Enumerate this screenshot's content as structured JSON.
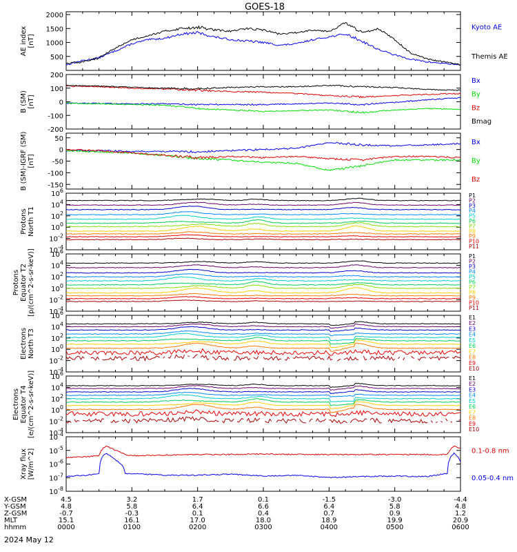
{
  "title": "GOES-18",
  "date_label": "2024 May 12",
  "colors": {
    "axis": "#000000",
    "black": "#000000",
    "blue": "#0000ee",
    "red": "#dd0000",
    "green": "#00dd00",
    "palette11": [
      "#000000",
      "#6a006a",
      "#0000cc",
      "#0088ff",
      "#00cccc",
      "#00cc55",
      "#88dd00",
      "#ffcc00",
      "#ff7700",
      "#ee0000",
      "#aa0000"
    ],
    "palette10": [
      "#000000",
      "#6a006a",
      "#0000cc",
      "#0088ff",
      "#00cccc",
      "#00cc55",
      "#ffcc00",
      "#ff7700",
      "#ee0000",
      "#aa0000"
    ]
  },
  "bottom_axis": {
    "row_labels": [
      "X-GSM",
      "Y-GSM",
      "Z-GSM",
      "MLT",
      "hhmm"
    ],
    "columns": [
      [
        "4.5",
        "4.8",
        "-0.7",
        "15.1",
        "0000"
      ],
      [
        "3.2",
        "5.8",
        "-0.3",
        "16.1",
        "0100"
      ],
      [
        "1.7",
        "6.4",
        "0.1",
        "17.0",
        "0200"
      ],
      [
        "0.1",
        "6.6",
        "0.4",
        "18.0",
        "0300"
      ],
      [
        "-1.5",
        "6.4",
        "0.7",
        "18.9",
        "0400"
      ],
      [
        "-3.0",
        "5.8",
        "0.9",
        "19.9",
        "0500"
      ],
      [
        "-4.4",
        "4.8",
        "1.2",
        "20.9",
        "0600"
      ]
    ]
  },
  "chart_data": [
    {
      "type": "line",
      "ylabel": "AE index\n[nT]",
      "ylim": [
        0,
        2100
      ],
      "yticks": [
        500,
        1000,
        1500,
        2000
      ],
      "ytick_labels": [
        "500",
        "1000",
        "1500",
        "2000"
      ],
      "x_hours": [
        0,
        0.25,
        0.5,
        0.75,
        1,
        1.25,
        1.5,
        1.75,
        2,
        2.25,
        2.5,
        2.75,
        3,
        3.25,
        3.5,
        3.75,
        4,
        4.25,
        4.5,
        4.75,
        5,
        5.25,
        5.5,
        5.75,
        6
      ],
      "series": [
        {
          "name": "Kyoto AE",
          "color": "blue",
          "values": [
            200,
            350,
            450,
            700,
            950,
            1100,
            1150,
            1300,
            1350,
            1200,
            1100,
            1050,
            1000,
            900,
            950,
            1100,
            1200,
            1300,
            1050,
            750,
            550,
            400,
            300,
            250,
            200
          ]
        },
        {
          "name": "Themis AE",
          "color": "black",
          "values": [
            250,
            300,
            450,
            800,
            1100,
            1250,
            1400,
            1500,
            1550,
            1450,
            1400,
            1500,
            1450,
            1300,
            1350,
            1450,
            1400,
            1700,
            1350,
            1500,
            1100,
            600,
            400,
            300,
            200
          ]
        }
      ]
    },
    {
      "type": "line",
      "ylabel": "B (SM)\n[nT]",
      "ylim": [
        -200,
        200
      ],
      "yticks": [
        -200,
        -100,
        0,
        100,
        200
      ],
      "ytick_labels": [
        "-200",
        "-100",
        "0",
        "100",
        "200"
      ],
      "x_hours": [
        0,
        0.5,
        1,
        1.5,
        2,
        2.5,
        3,
        3.5,
        4,
        4.5,
        5,
        5.5,
        6
      ],
      "series": [
        {
          "name": "Bx",
          "color": "blue",
          "values": [
            -10,
            -12,
            -15,
            -15,
            -20,
            -20,
            -20,
            -15,
            -10,
            -20,
            -5,
            15,
            30
          ]
        },
        {
          "name": "By",
          "color": "green",
          "values": [
            -10,
            -15,
            -20,
            -25,
            -50,
            -60,
            -70,
            -65,
            -60,
            -80,
            -60,
            -50,
            -55
          ]
        },
        {
          "name": "Bz",
          "color": "red",
          "values": [
            115,
            110,
            100,
            95,
            85,
            75,
            70,
            60,
            45,
            35,
            45,
            55,
            60
          ]
        },
        {
          "name": "Bmag",
          "color": "black",
          "values": [
            120,
            115,
            105,
            100,
            95,
            105,
            110,
            110,
            120,
            110,
            105,
            90,
            85
          ]
        }
      ]
    },
    {
      "type": "line",
      "ylabel": "B (SM)-IGRF (SM)\n[nT]",
      "ylim": [
        -170,
        70
      ],
      "yticks": [
        -150,
        -100,
        -50,
        0,
        50
      ],
      "ytick_labels": [
        "-150",
        "-100",
        "-50",
        "0",
        "50"
      ],
      "x_hours": [
        0,
        0.5,
        1,
        1.5,
        2,
        2.5,
        3,
        3.5,
        4,
        4.5,
        5,
        5.5,
        6
      ],
      "series": [
        {
          "name": "Bx",
          "color": "blue",
          "values": [
            -5,
            -5,
            -8,
            -8,
            -10,
            -5,
            0,
            5,
            30,
            20,
            15,
            20,
            25
          ]
        },
        {
          "name": "By",
          "color": "green",
          "values": [
            -5,
            -10,
            -15,
            -25,
            -40,
            -45,
            -55,
            -60,
            -90,
            -70,
            -45,
            -45,
            -45
          ]
        },
        {
          "name": "Bz",
          "color": "red",
          "values": [
            0,
            -5,
            -15,
            -25,
            -35,
            -30,
            -35,
            -30,
            -40,
            -45,
            -30,
            -30,
            -35
          ]
        }
      ]
    },
    {
      "type": "line",
      "ylabel": "Protons\nNorth T1",
      "yscale": "log",
      "ylim_exp": [
        -4,
        6
      ],
      "ytick_exps": [
        -4,
        -2,
        0,
        2,
        4,
        6
      ],
      "legend": [
        "P1",
        "P2",
        "P3",
        "P4",
        "P5",
        "P6",
        "P7",
        "P8",
        "P9",
        "P10",
        "P11"
      ],
      "palette": "palette11",
      "base_log": [
        4.7,
        3.9,
        3.1,
        2.2,
        1.4,
        0.7,
        0.1,
        -0.7,
        -1.2,
        -1.7,
        -2.2
      ]
    },
    {
      "type": "line",
      "ylabel": "Protons\nEquator T2\n[p/(cm^2-s-sr-keV)]",
      "yscale": "log",
      "ylim_exp": [
        -4,
        6
      ],
      "ytick_exps": [
        -4,
        -2,
        0,
        2,
        4,
        6
      ],
      "legend": [
        "P1",
        "P2",
        "P3",
        "P4",
        "P5",
        "P6",
        "P7",
        "P8",
        "P9",
        "P10",
        "P11"
      ],
      "palette": "palette11",
      "base_log": [
        4.4,
        3.6,
        2.7,
        2.0,
        1.3,
        0.6,
        0.0,
        -0.8,
        -1.3,
        -1.8,
        -2.3
      ]
    },
    {
      "type": "line",
      "ylabel": "Electrons\nNorth T3",
      "yscale": "log",
      "ylim_exp": [
        -4,
        6
      ],
      "ytick_exps": [
        -4,
        -2,
        0,
        2,
        4,
        6
      ],
      "legend": [
        "E1",
        "E2",
        "E3",
        "E4",
        "E5",
        "E6",
        "E7",
        "E8",
        "E9",
        "E10"
      ],
      "palette": "palette10",
      "base_log": [
        4.5,
        4.0,
        3.4,
        2.7,
        2.1,
        1.5,
        0.9,
        0.2,
        -0.6,
        -1.6
      ]
    },
    {
      "type": "line",
      "ylabel": "Electrons\nEquator T4\n[e/(cm^2-s-sr-keV)]",
      "yscale": "log",
      "ylim_exp": [
        -4,
        6
      ],
      "ytick_exps": [
        -4,
        -2,
        0,
        2,
        4,
        6
      ],
      "legend": [
        "E1",
        "E2",
        "E3",
        "E4",
        "E5",
        "E6",
        "E7",
        "E8",
        "E9",
        "E10"
      ],
      "palette": "palette10",
      "base_log": [
        4.3,
        3.8,
        3.2,
        2.6,
        2.0,
        1.4,
        0.8,
        0.1,
        -0.7,
        -1.9
      ]
    },
    {
      "type": "line",
      "ylabel": "Xray flux\n[W/m^2]",
      "yscale": "log",
      "ylim_exp": [
        -8,
        -4
      ],
      "ytick_exps": [
        -8,
        -7,
        -6,
        -5,
        -4
      ],
      "x_hours": [
        0,
        0.3,
        0.5,
        0.6,
        0.75,
        0.9,
        1,
        1.5,
        2,
        2.5,
        3,
        3.5,
        4,
        4.5,
        5,
        5.5,
        5.8,
        5.9,
        6
      ],
      "series": [
        {
          "name": "0.1-0.8 nm",
          "color": "red",
          "values": [
            3e-06,
            3.5e-06,
            4e-06,
            2e-05,
            1e-05,
            5e-06,
            4e-06,
            4.5e-06,
            5e-06,
            5e-06,
            5.5e-06,
            5e-06,
            5e-06,
            5e-06,
            5e-06,
            5e-06,
            5e-06,
            2e-05,
            1.5e-05
          ]
        },
        {
          "name": "0.05-0.4 nm",
          "color": "blue",
          "values": [
            1.2e-07,
            1.5e-07,
            2e-07,
            6e-06,
            2e-06,
            2e-07,
            2e-07,
            1.5e-07,
            1.5e-07,
            1.8e-07,
            1.3e-07,
            1.5e-07,
            1e-07,
            1.2e-07,
            1.3e-07,
            1.2e-07,
            2e-07,
            6e-06,
            1.5e-06
          ]
        }
      ]
    }
  ]
}
